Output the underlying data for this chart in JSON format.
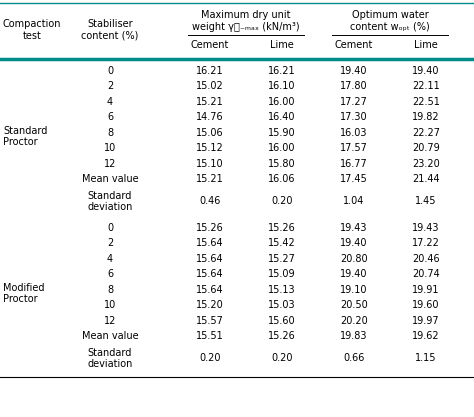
{
  "sections": [
    {
      "label1": "Standard",
      "label2": "Proctor",
      "rows": [
        [
          "0",
          "16.21",
          "16.21",
          "19.40",
          "19.40"
        ],
        [
          "2",
          "15.02",
          "16.10",
          "17.80",
          "22.11"
        ],
        [
          "4",
          "15.21",
          "16.00",
          "17.27",
          "22.51"
        ],
        [
          "6",
          "14.76",
          "16.40",
          "17.30",
          "19.82"
        ],
        [
          "8",
          "15.06",
          "15.90",
          "16.03",
          "22.27"
        ],
        [
          "10",
          "15.12",
          "16.00",
          "17.57",
          "20.79"
        ],
        [
          "12",
          "15.10",
          "15.80",
          "16.77",
          "23.20"
        ],
        [
          "Mean value",
          "15.21",
          "16.06",
          "17.45",
          "21.44"
        ],
        [
          "Standard\ndeviation",
          "0.46",
          "0.20",
          "1.04",
          "1.45"
        ]
      ]
    },
    {
      "label1": "Modified",
      "label2": "Proctor",
      "rows": [
        [
          "0",
          "15.26",
          "15.26",
          "19.43",
          "19.43"
        ],
        [
          "2",
          "15.64",
          "15.42",
          "19.40",
          "17.22"
        ],
        [
          "4",
          "15.64",
          "15.27",
          "20.80",
          "20.46"
        ],
        [
          "6",
          "15.64",
          "15.09",
          "19.40",
          "20.74"
        ],
        [
          "8",
          "15.64",
          "15.13",
          "19.10",
          "19.91"
        ],
        [
          "10",
          "15.20",
          "15.03",
          "20.50",
          "19.60"
        ],
        [
          "12",
          "15.57",
          "15.60",
          "20.20",
          "19.97"
        ],
        [
          "Mean value",
          "15.51",
          "15.26",
          "19.83",
          "19.62"
        ],
        [
          "Standard\ndeviation",
          "0.20",
          "0.20",
          "0.66",
          "1.15"
        ]
      ]
    }
  ],
  "teal_color": "#008B8B",
  "bg_color": "white",
  "text_color": "black",
  "font_size": 7.0
}
